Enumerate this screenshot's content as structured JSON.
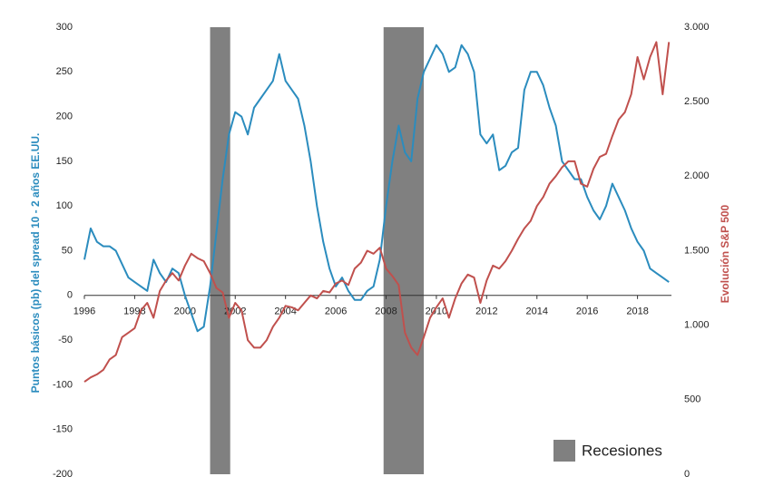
{
  "chart_data": {
    "type": "line",
    "x": [
      1996.0,
      1996.25,
      1996.5,
      1996.75,
      1997.0,
      1997.25,
      1997.5,
      1997.75,
      1998.0,
      1998.25,
      1998.5,
      1998.75,
      1999.0,
      1999.25,
      1999.5,
      1999.75,
      2000.0,
      2000.25,
      2000.5,
      2000.75,
      2001.0,
      2001.25,
      2001.5,
      2001.75,
      2002.0,
      2002.25,
      2002.5,
      2002.75,
      2003.0,
      2003.25,
      2003.5,
      2003.75,
      2004.0,
      2004.25,
      2004.5,
      2004.75,
      2005.0,
      2005.25,
      2005.5,
      2005.75,
      2006.0,
      2006.25,
      2006.5,
      2006.75,
      2007.0,
      2007.25,
      2007.5,
      2007.75,
      2008.0,
      2008.25,
      2008.5,
      2008.75,
      2009.0,
      2009.25,
      2009.5,
      2009.75,
      2010.0,
      2010.25,
      2010.5,
      2010.75,
      2011.0,
      2011.25,
      2011.5,
      2011.75,
      2012.0,
      2012.25,
      2012.5,
      2012.75,
      2013.0,
      2013.25,
      2013.5,
      2013.75,
      2014.0,
      2014.25,
      2014.5,
      2014.75,
      2015.0,
      2015.25,
      2015.5,
      2015.75,
      2016.0,
      2016.25,
      2016.5,
      2016.75,
      2017.0,
      2017.25,
      2017.5,
      2017.75,
      2018.0,
      2018.25,
      2018.5,
      2018.75,
      2019.0,
      2019.25
    ],
    "series": [
      {
        "name": "Puntos básicos (pb) del spread 10 - 2 años EE.UU.",
        "color": "#2b8cbe",
        "values": [
          40,
          75,
          60,
          55,
          55,
          50,
          35,
          20,
          15,
          10,
          5,
          40,
          25,
          15,
          30,
          25,
          0,
          -20,
          -40,
          -35,
          10,
          70,
          130,
          180,
          205,
          200,
          180,
          210,
          220,
          230,
          240,
          270,
          240,
          230,
          220,
          190,
          150,
          100,
          60,
          30,
          10,
          20,
          5,
          -5,
          -5,
          5,
          10,
          40,
          100,
          150,
          190,
          160,
          150,
          220,
          250,
          265,
          280,
          270,
          250,
          255,
          280,
          270,
          250,
          180,
          170,
          180,
          140,
          145,
          160,
          165,
          230,
          250,
          250,
          235,
          210,
          190,
          150,
          140,
          130,
          130,
          110,
          95,
          85,
          100,
          125,
          110,
          95,
          75,
          60,
          50,
          30,
          25,
          20,
          15
        ]
      },
      {
        "name": "Evolución S&P 500",
        "color": "#c0504d",
        "axis": "y2",
        "values": [
          620,
          650,
          670,
          700,
          770,
          800,
          920,
          950,
          980,
          1100,
          1150,
          1050,
          1230,
          1300,
          1350,
          1300,
          1400,
          1480,
          1450,
          1430,
          1350,
          1250,
          1220,
          1050,
          1150,
          1100,
          900,
          850,
          850,
          900,
          990,
          1050,
          1130,
          1120,
          1100,
          1150,
          1200,
          1180,
          1230,
          1220,
          1280,
          1300,
          1270,
          1380,
          1420,
          1500,
          1480,
          1520,
          1380,
          1330,
          1270,
          950,
          850,
          800,
          920,
          1050,
          1120,
          1180,
          1050,
          1180,
          1280,
          1340,
          1320,
          1150,
          1300,
          1400,
          1380,
          1430,
          1500,
          1580,
          1650,
          1700,
          1800,
          1860,
          1950,
          2000,
          2060,
          2100,
          2100,
          1950,
          1930,
          2050,
          2130,
          2150,
          2270,
          2380,
          2430,
          2550,
          2800,
          2650,
          2800,
          2900,
          2550,
          2900
        ]
      }
    ],
    "recessions": [
      [
        2001.0,
        2001.8
      ],
      [
        2007.9,
        2009.5
      ]
    ],
    "recession_label": "Recesiones",
    "recession_color": "#808080",
    "xlim": [
      1996,
      2019.35
    ],
    "xticks": [
      1996,
      1998,
      2000,
      2002,
      2004,
      2006,
      2008,
      2010,
      2012,
      2014,
      2016,
      2018
    ],
    "ylim": [
      -200,
      300
    ],
    "yticks": [
      -200,
      -150,
      -100,
      -50,
      0,
      50,
      100,
      150,
      200,
      250,
      300
    ],
    "y2lim": [
      0,
      3000
    ],
    "y2ticks": [
      0,
      500,
      {
        "value": 1000,
        "label": "1.000"
      },
      {
        "value": 1500,
        "label": "1.500"
      },
      {
        "value": 2000,
        "label": "2.000"
      },
      {
        "value": 2500,
        "label": "2.500"
      },
      {
        "value": 3000,
        "label": "3.000"
      }
    ],
    "ylabel": "Puntos básicos (pb) del spread 10 - 2 años EE.UU.",
    "y2label": "Evolución S&P 500"
  }
}
